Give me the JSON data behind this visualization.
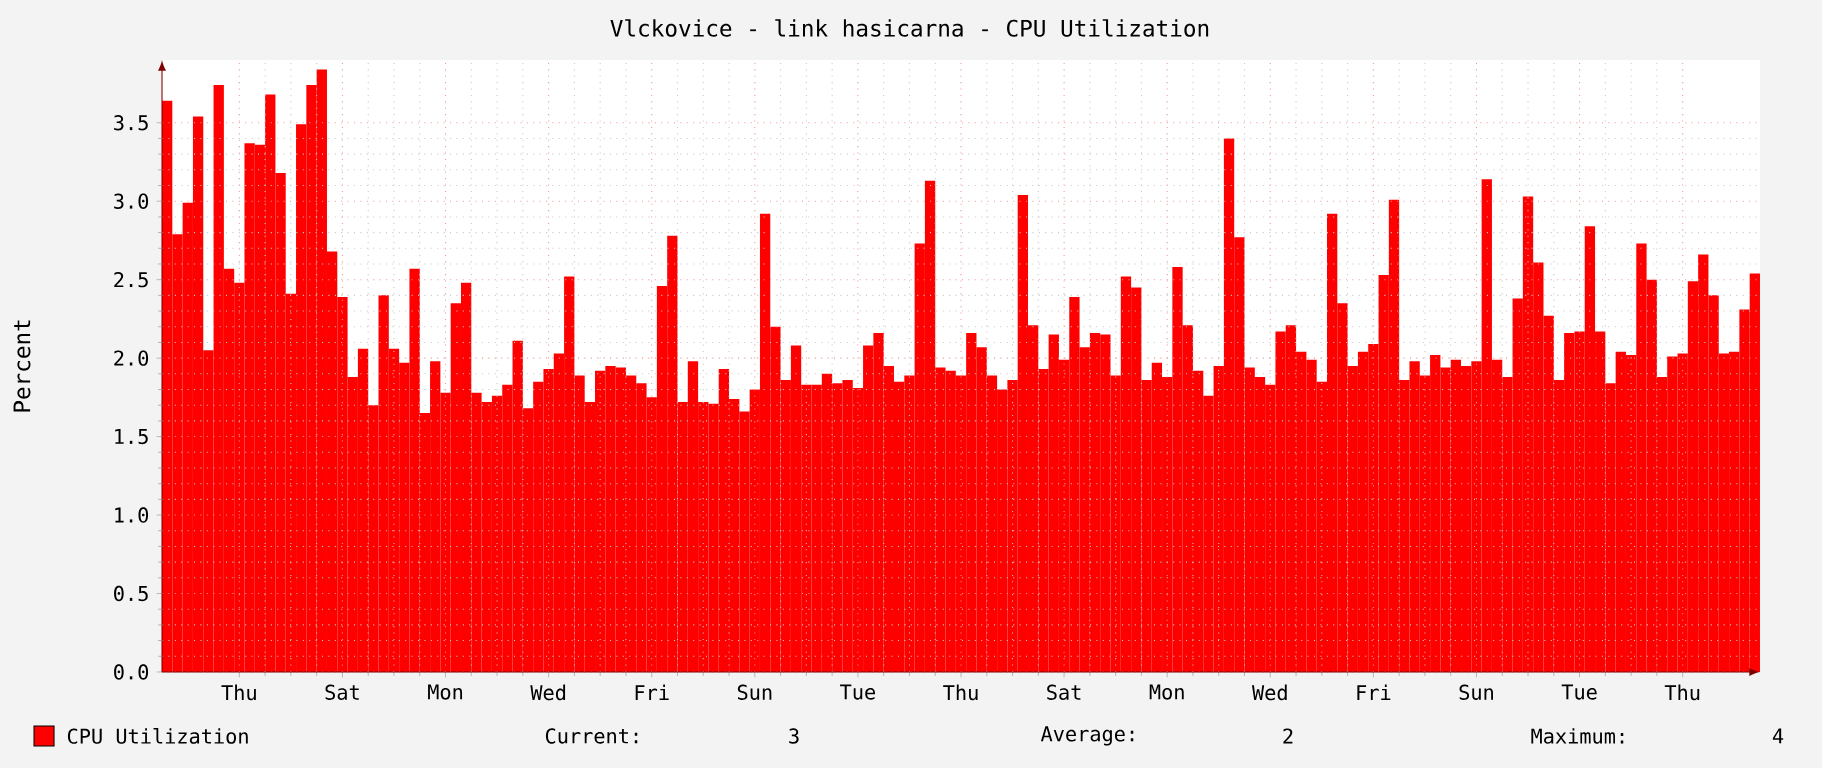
{
  "chart_data": {
    "type": "bar",
    "title": "Vlckovice - link hasicarna - CPU Utilization",
    "ylabel": "Percent",
    "categories": [
      null,
      null,
      null,
      null,
      null,
      null,
      null,
      "Thu",
      null,
      null,
      null,
      null,
      null,
      null,
      null,
      null,
      null,
      "Sat",
      null,
      null,
      null,
      null,
      null,
      null,
      null,
      null,
      null,
      "Mon",
      null,
      null,
      null,
      null,
      null,
      null,
      null,
      null,
      null,
      "Wed",
      null,
      null,
      null,
      null,
      null,
      null,
      null,
      null,
      null,
      "Fri",
      null,
      null,
      null,
      null,
      null,
      null,
      null,
      null,
      null,
      "Sun",
      null,
      null,
      null,
      null,
      null,
      null,
      null,
      null,
      null,
      "Tue",
      null,
      null,
      null,
      null,
      null,
      null,
      null,
      null,
      null,
      "Thu",
      null,
      null,
      null,
      null,
      null,
      null,
      null,
      null,
      null,
      "Sat",
      null,
      null,
      null,
      null,
      null,
      null,
      null,
      null,
      null,
      "Mon",
      null,
      null,
      null,
      null,
      null,
      null,
      null,
      null,
      null,
      "Wed",
      null,
      null,
      null,
      null,
      null,
      null,
      null,
      null,
      null,
      "Fri",
      null,
      null,
      null,
      null,
      null,
      null,
      null,
      null,
      null,
      "Sun",
      null,
      null,
      null,
      null,
      null,
      null,
      null,
      null,
      null,
      "Tue",
      null,
      null,
      null,
      null,
      null,
      null,
      null,
      null,
      null,
      "Thu",
      null,
      null,
      null,
      null,
      null,
      null,
      null
    ],
    "series": [
      {
        "name": "CPU Utilization",
        "color": "#ff0000",
        "values": [
          3.64,
          2.79,
          2.99,
          3.54,
          2.05,
          3.74,
          2.57,
          2.48,
          3.37,
          3.36,
          3.68,
          3.18,
          2.41,
          3.49,
          3.74,
          3.84,
          2.68,
          2.39,
          1.88,
          2.06,
          1.7,
          2.4,
          2.06,
          1.97,
          2.57,
          1.65,
          1.98,
          1.78,
          2.35,
          2.48,
          1.78,
          1.72,
          1.76,
          1.83,
          2.11,
          1.68,
          1.85,
          1.93,
          2.03,
          2.52,
          1.89,
          1.72,
          1.92,
          1.95,
          1.94,
          1.89,
          1.84,
          1.75,
          2.46,
          2.78,
          1.72,
          1.98,
          1.72,
          1.71,
          1.93,
          1.74,
          1.66,
          1.8,
          2.92,
          2.2,
          1.86,
          2.08,
          1.83,
          1.83,
          1.9,
          1.84,
          1.86,
          1.81,
          2.08,
          2.16,
          1.95,
          1.85,
          1.89,
          2.73,
          3.13,
          1.94,
          1.92,
          1.89,
          2.16,
          2.07,
          1.89,
          1.8,
          1.86,
          3.04,
          2.21,
          1.93,
          2.15,
          1.99,
          2.39,
          2.07,
          2.16,
          2.15,
          1.89,
          2.52,
          2.45,
          1.86,
          1.97,
          1.88,
          2.58,
          2.21,
          1.92,
          1.76,
          1.95,
          3.4,
          2.77,
          1.94,
          1.88,
          1.83,
          2.17,
          2.21,
          2.04,
          1.99,
          1.85,
          2.92,
          2.35,
          1.95,
          2.04,
          2.09,
          2.53,
          3.01,
          1.86,
          1.98,
          1.89,
          2.02,
          1.94,
          1.99,
          1.95,
          1.98,
          3.14,
          1.99,
          1.88,
          2.38,
          3.03,
          2.61,
          2.27,
          1.86,
          2.16,
          2.17,
          2.84,
          2.17,
          1.84,
          2.04,
          2.02,
          2.73,
          2.5,
          1.88,
          2.01,
          2.03,
          2.49,
          2.66,
          2.4,
          2.03,
          2.04,
          2.31,
          2.54
        ]
      }
    ],
    "ylim": [
      0,
      3.9
    ],
    "yticks": [
      {
        "value": 0,
        "label": "0.0"
      },
      {
        "value": 0.5,
        "label": "0.5"
      },
      {
        "value": 1,
        "label": "1.0"
      },
      {
        "value": 1.5,
        "label": "1.5"
      },
      {
        "value": 2,
        "label": "2.0"
      },
      {
        "value": 2.5,
        "label": "2.5"
      },
      {
        "value": 3,
        "label": "3.0"
      },
      {
        "value": 3.5,
        "label": "3.5"
      }
    ],
    "grid": true,
    "legend": "bottom left",
    "annotations": [
      "Current:",
      "3",
      "Average:",
      "2",
      "Maximum:",
      "4"
    ]
  }
}
